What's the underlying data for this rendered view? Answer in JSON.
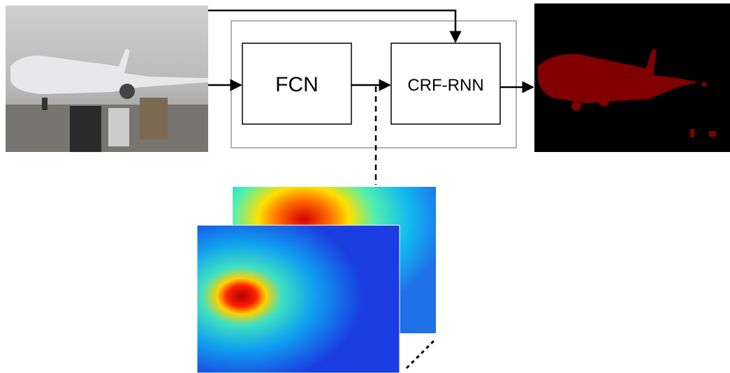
{
  "nodes": [
    {
      "label": "FCN"
    },
    {
      "label": "CRF-RNN"
    }
  ]
}
